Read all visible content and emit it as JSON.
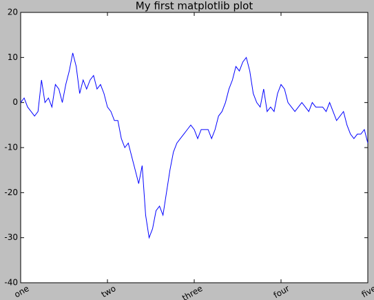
{
  "chart_data": {
    "type": "line",
    "title": "My first matplotlib plot",
    "x": [
      0,
      10,
      20,
      30,
      40,
      50,
      60,
      70,
      80,
      90,
      100,
      110,
      120,
      130,
      140,
      150,
      160,
      170,
      180,
      190,
      200,
      210,
      220,
      230,
      240,
      250,
      260,
      270,
      280,
      290,
      300,
      310,
      320,
      330,
      340,
      350,
      360,
      370,
      380,
      390,
      400,
      410,
      420,
      430,
      440,
      450,
      460,
      470,
      480,
      490,
      500,
      510,
      520,
      530,
      540,
      550,
      560,
      570,
      580,
      590,
      600,
      610,
      620,
      630,
      640,
      650,
      660,
      670,
      680,
      690,
      700,
      710,
      720,
      730,
      740,
      750,
      760,
      770,
      780,
      790,
      800,
      810,
      820,
      830,
      840,
      850,
      860,
      870,
      880,
      890,
      900,
      910,
      920,
      930,
      940,
      950,
      960,
      970,
      980,
      990,
      1000
    ],
    "series": [
      {
        "color": "#0000ff",
        "values": [
          0,
          1,
          -1,
          -2,
          -3,
          -2,
          5,
          0,
          1,
          -1,
          4,
          3,
          0,
          4,
          7,
          11,
          8,
          2,
          5,
          3,
          5,
          6,
          3,
          4,
          2,
          -1,
          -2,
          -4,
          -4,
          -8,
          -10,
          -9,
          -12,
          -15,
          -18,
          -14,
          -25,
          -30,
          -28,
          -24,
          -23,
          -25,
          -20,
          -15,
          -11,
          -9,
          -8,
          -7,
          -6,
          -5,
          -6,
          -8,
          -6,
          -6,
          -6,
          -8,
          -6,
          -3,
          -2,
          0,
          3,
          5,
          8,
          7,
          9,
          10,
          7,
          2,
          0,
          -1,
          3,
          -2,
          -1,
          -2,
          2,
          4,
          3,
          0,
          -1,
          -2,
          -1,
          0,
          -1,
          -2,
          0,
          -1,
          -1,
          -1,
          -2,
          0,
          -2,
          -4,
          -3,
          -2,
          -5,
          -7,
          -8,
          -7,
          -7,
          -6,
          -9
        ]
      }
    ],
    "xlim": [
      0,
      1000
    ],
    "xticks": [
      {
        "value": 0,
        "label": "one"
      },
      {
        "value": 250,
        "label": "two"
      },
      {
        "value": 500,
        "label": "three"
      },
      {
        "value": 750,
        "label": "four"
      },
      {
        "value": 1000,
        "label": "five"
      }
    ],
    "ylim": [
      -40,
      20
    ],
    "yticks": [
      -40,
      -30,
      -20,
      -10,
      0,
      10,
      20
    ],
    "grid": false
  }
}
